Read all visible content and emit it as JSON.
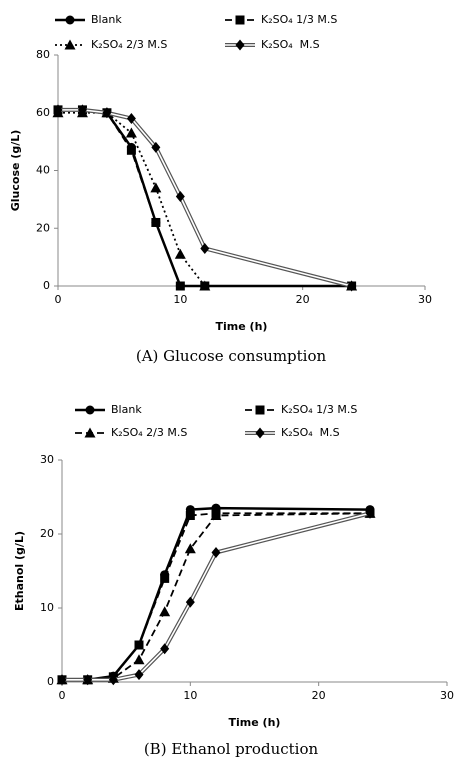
{
  "chart_data": [
    {
      "type": "line",
      "caption": "(A) Glucose consumption",
      "xlabel": "Time (h)",
      "ylabel": "Glucose (g/L)",
      "x": [
        0,
        2,
        4,
        6,
        8,
        10,
        12,
        24
      ],
      "xlim": [
        0,
        30
      ],
      "xticks": [
        0,
        10,
        20,
        30
      ],
      "ylim": [
        0,
        80
      ],
      "yticks": [
        0,
        20,
        40,
        60,
        80
      ],
      "series": [
        {
          "name": "Blank",
          "color": "#000000",
          "dash": "solid",
          "marker": "circle",
          "values": [
            61,
            61,
            60,
            48,
            22,
            0,
            0,
            0
          ]
        },
        {
          "name": "K₂SO₄ 1/3 M.S",
          "color": "#000000",
          "dash": "dashed",
          "marker": "square",
          "values": [
            61,
            61,
            60,
            47,
            22,
            0,
            0,
            0
          ]
        },
        {
          "name": "K₂SO₄ 2/3 M.S",
          "color": "#000000",
          "dash": "dotted",
          "marker": "triangle",
          "values": [
            60,
            60,
            60,
            53,
            34,
            11,
            0,
            0
          ]
        },
        {
          "name": "K₂SO₄  M.S",
          "color": "#000000",
          "dash": "double",
          "marker": "diamond",
          "values": [
            61,
            61,
            60,
            58,
            48,
            31,
            13,
            0
          ]
        }
      ]
    },
    {
      "type": "line",
      "caption": "(B) Ethanol production",
      "xlabel": "Time (h)",
      "ylabel": "Ethanol (g/L)",
      "x": [
        0,
        2,
        4,
        6,
        8,
        10,
        12,
        24
      ],
      "xlim": [
        0,
        30
      ],
      "xticks": [
        0,
        10,
        20,
        30
      ],
      "ylim": [
        0,
        30
      ],
      "yticks": [
        0,
        10,
        20,
        30
      ],
      "series": [
        {
          "name": "Blank",
          "color": "#000000",
          "dash": "solid",
          "marker": "circle",
          "values": [
            0.3,
            0.3,
            0.8,
            5,
            14.5,
            23.3,
            23.5,
            23.3
          ]
        },
        {
          "name": "K₂SO₄ 1/3 M.S",
          "color": "#000000",
          "dash": "dashed",
          "marker": "square",
          "values": [
            0.3,
            0.3,
            0.7,
            5,
            14,
            22.5,
            22.8,
            22.8
          ]
        },
        {
          "name": "K₂SO₄ 2/3 M.S",
          "color": "#000000",
          "dash": "dashed",
          "marker": "triangle",
          "values": [
            0.3,
            0.3,
            0.5,
            3,
            9.5,
            18,
            22.5,
            22.8
          ]
        },
        {
          "name": "K₂SO₄  M.S",
          "color": "#000000",
          "dash": "double",
          "marker": "diamond",
          "values": [
            0.3,
            0.3,
            0.3,
            1,
            4.5,
            10.8,
            17.5,
            22.8
          ]
        }
      ]
    }
  ]
}
